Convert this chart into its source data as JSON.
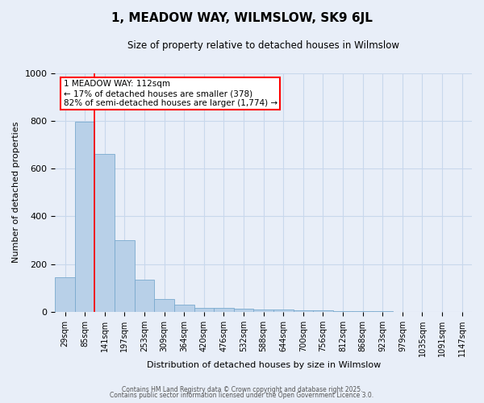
{
  "title": "1, MEADOW WAY, WILMSLOW, SK9 6JL",
  "subtitle": "Size of property relative to detached houses in Wilmslow",
  "xlabel": "Distribution of detached houses by size in Wilmslow",
  "ylabel": "Number of detached properties",
  "bar_labels": [
    "29sqm",
    "85sqm",
    "141sqm",
    "197sqm",
    "253sqm",
    "309sqm",
    "364sqm",
    "420sqm",
    "476sqm",
    "532sqm",
    "588sqm",
    "644sqm",
    "700sqm",
    "756sqm",
    "812sqm",
    "868sqm",
    "923sqm",
    "979sqm",
    "1035sqm",
    "1091sqm",
    "1147sqm"
  ],
  "bar_values": [
    145,
    795,
    660,
    300,
    135,
    55,
    30,
    18,
    15,
    12,
    8,
    8,
    5,
    5,
    3,
    3,
    2,
    0,
    0,
    0,
    0
  ],
  "bar_color": "#b8d0e8",
  "bar_edgecolor": "#7aaace",
  "grid_color": "#c8d8ec",
  "background_color": "#e8eef8",
  "red_line_x": 1.5,
  "annotation_box_text": "1 MEADOW WAY: 112sqm\n← 17% of detached houses are smaller (378)\n82% of semi-detached houses are larger (1,774) →",
  "ylim": [
    0,
    1000
  ],
  "footnote1": "Contains HM Land Registry data © Crown copyright and database right 2025.",
  "footnote2": "Contains public sector information licensed under the Open Government Licence 3.0."
}
